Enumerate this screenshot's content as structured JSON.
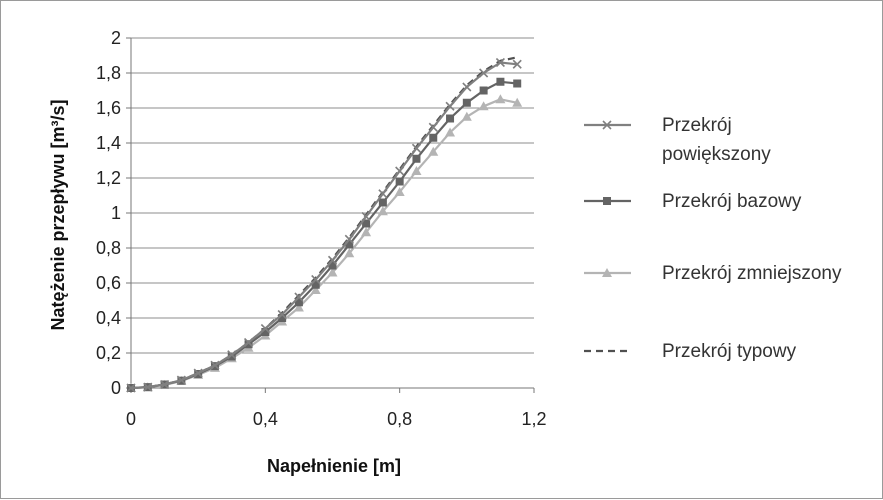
{
  "chart_data": {
    "type": "line",
    "title": "",
    "xlabel": "Napełnienie [m]",
    "ylabel": "Natężenie przepływu [m³/s]",
    "xlim": [
      0,
      1.2
    ],
    "ylim": [
      0,
      2
    ],
    "x_ticks": [
      "0",
      "0,4",
      "0,8",
      "1,2"
    ],
    "y_ticks": [
      "0",
      "0,2",
      "0,4",
      "0,6",
      "0,8",
      "1",
      "1,2",
      "1,4",
      "1,6",
      "1,8",
      "2"
    ],
    "grid": "horizontal",
    "legend_position": "right",
    "x": [
      0,
      0.05,
      0.1,
      0.15,
      0.2,
      0.25,
      0.3,
      0.35,
      0.4,
      0.45,
      0.5,
      0.55,
      0.6,
      0.65,
      0.7,
      0.75,
      0.8,
      0.85,
      0.9,
      0.95,
      1.0,
      1.05,
      1.1,
      1.15
    ],
    "series": [
      {
        "name": "Przekrój powiększony",
        "legend_lines": [
          "Przekrój",
          "powiększony"
        ],
        "marker": "x",
        "dash": "solid",
        "color": "#808080",
        "values": [
          0.0,
          0.005,
          0.02,
          0.045,
          0.085,
          0.13,
          0.19,
          0.26,
          0.34,
          0.42,
          0.52,
          0.62,
          0.73,
          0.85,
          0.98,
          1.11,
          1.24,
          1.37,
          1.49,
          1.61,
          1.72,
          1.8,
          1.86,
          1.85
        ]
      },
      {
        "name": "Przekrój bazowy",
        "legend_lines": [
          "Przekrój bazowy"
        ],
        "marker": "square",
        "dash": "solid",
        "color": "#646464",
        "values": [
          0.0,
          0.005,
          0.02,
          0.042,
          0.08,
          0.125,
          0.18,
          0.25,
          0.32,
          0.4,
          0.49,
          0.59,
          0.7,
          0.82,
          0.94,
          1.06,
          1.18,
          1.31,
          1.43,
          1.54,
          1.63,
          1.7,
          1.75,
          1.74
        ]
      },
      {
        "name": "Przekrój zmniejszony",
        "legend_lines": [
          "Przekrój zmniejszony"
        ],
        "marker": "triangle",
        "dash": "solid",
        "color": "#b4b4b4",
        "values": [
          0.0,
          0.004,
          0.018,
          0.04,
          0.075,
          0.115,
          0.17,
          0.23,
          0.3,
          0.38,
          0.46,
          0.56,
          0.66,
          0.77,
          0.89,
          1.01,
          1.12,
          1.24,
          1.35,
          1.46,
          1.55,
          1.61,
          1.65,
          1.63
        ]
      },
      {
        "name": "Przekrój typowy",
        "legend_lines": [
          "Przekrój typowy"
        ],
        "marker": "none",
        "dash": "dashed",
        "color": "#505050",
        "values": [
          0.0,
          0.005,
          0.02,
          0.045,
          0.085,
          0.13,
          0.19,
          0.26,
          0.34,
          0.43,
          0.53,
          0.63,
          0.74,
          0.86,
          0.99,
          1.12,
          1.25,
          1.38,
          1.5,
          1.62,
          1.73,
          1.81,
          1.87,
          1.89
        ]
      }
    ]
  }
}
